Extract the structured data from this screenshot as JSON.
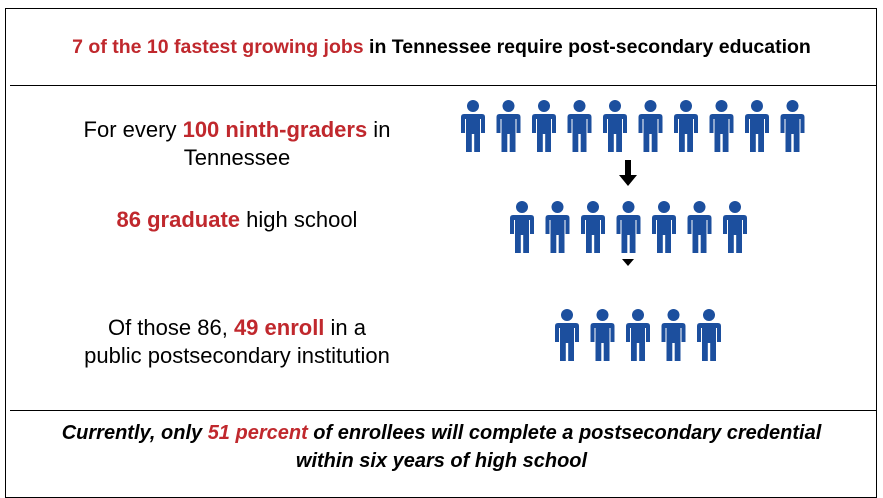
{
  "header": {
    "parts": [
      "7 of the 10 fastest growing jobs",
      " in Tennessee require post-secondary education"
    ]
  },
  "rows": [
    {
      "lines": [
        [
          "For every ",
          "100 ninth-graders",
          " in"
        ],
        [
          "Tennessee"
        ]
      ]
    },
    {
      "lines": [
        [
          "86 graduate",
          " high school"
        ]
      ]
    },
    {
      "lines": [
        [
          "Of those 86, ",
          "49 enroll",
          " in a"
        ],
        [
          "public postsecondary institution"
        ]
      ]
    }
  ],
  "footer": {
    "lines": [
      [
        "Currently, only ",
        "51 percent",
        " of enrollees will complete a postsecondary credential"
      ],
      [
        "within six years of high school"
      ]
    ]
  }
}
